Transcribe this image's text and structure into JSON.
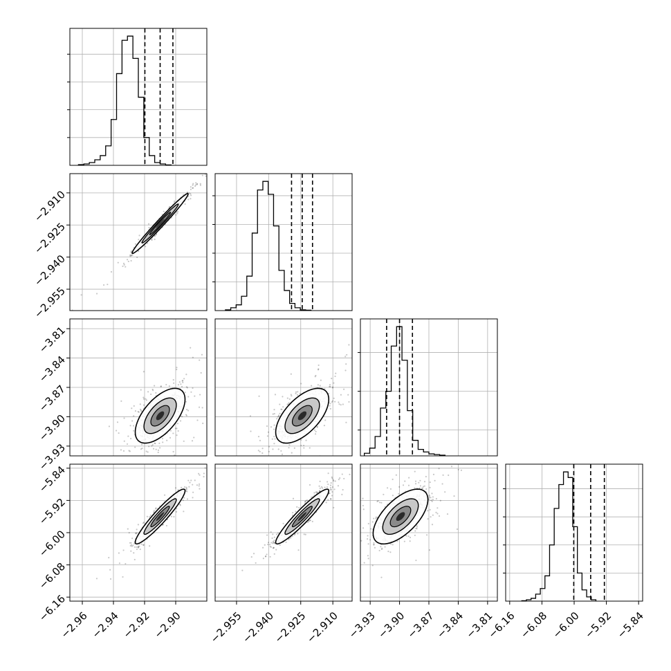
{
  "chart_data": {
    "type": "corner",
    "title": "",
    "grid": true,
    "colors": {
      "line": "#000000",
      "grid": "#b0b0b0",
      "scatter": "#000000",
      "background": "#ffffff"
    },
    "params": [
      {
        "range": [
          -2.968,
          -2.88
        ],
        "ticks": [
          {
            "v": -2.96,
            "label": "−2.96"
          },
          {
            "v": -2.94,
            "label": "−2.94"
          },
          {
            "v": -2.92,
            "label": "−2.92"
          },
          {
            "v": -2.9,
            "label": "−2.90"
          }
        ],
        "quantiles": [
          -2.9198,
          -2.91,
          -2.9018
        ],
        "hist": {
          "edges_start": -2.9625,
          "bin_width": 0.0035,
          "counts": [
            0.5,
            1,
            2,
            4,
            7,
            14,
            33,
            66,
            90,
            93,
            77,
            49,
            20,
            7,
            2,
            1,
            0.3
          ]
        },
        "hist_yticks": [
          20,
          40,
          60,
          80
        ]
      },
      {
        "range": [
          -2.965,
          -2.901
        ],
        "ticks": [
          {
            "v": -2.955,
            "label": "−2.955"
          },
          {
            "v": -2.94,
            "label": "−2.940"
          },
          {
            "v": -2.925,
            "label": "−2.925"
          },
          {
            "v": -2.91,
            "label": "−2.910"
          }
        ],
        "quantiles": [
          -2.9293,
          -2.9243,
          -2.9195
        ],
        "hist": {
          "edges_start": -2.9602,
          "bin_width": 0.0025,
          "counts": [
            0.5,
            2,
            4,
            10,
            24,
            54,
            84,
            90,
            81,
            59,
            28,
            14,
            5,
            2,
            0.5,
            0.3
          ]
        },
        "hist_yticks": [
          20,
          40,
          60,
          80
        ]
      },
      {
        "range": [
          -3.94,
          -3.8
        ],
        "ticks": [
          {
            "v": -3.93,
            "label": "−3.93"
          },
          {
            "v": -3.9,
            "label": "−3.90"
          },
          {
            "v": -3.87,
            "label": "−3.87"
          },
          {
            "v": -3.84,
            "label": "−3.84"
          },
          {
            "v": -3.81,
            "label": "−3.81"
          }
        ],
        "quantiles": [
          -3.9132,
          -3.9,
          -3.8868
        ],
        "hist": {
          "edges_start": -3.936,
          "bin_width": 0.0055,
          "counts": [
            2,
            6,
            15,
            37,
            50,
            85,
            100,
            74,
            35,
            12,
            5,
            3,
            1.5,
            1,
            0.5
          ]
        },
        "hist_yticks": [
          20,
          50,
          80
        ]
      },
      {
        "range": [
          -6.17,
          -5.83
        ],
        "ticks": [
          {
            "v": -6.16,
            "label": "−6.16"
          },
          {
            "v": -6.08,
            "label": "−6.08"
          },
          {
            "v": -6.0,
            "label": "−6.00"
          },
          {
            "v": -5.92,
            "label": "−5.92"
          },
          {
            "v": -5.84,
            "label": "−5.84"
          }
        ],
        "quantiles": [
          -6.001,
          -5.959,
          -5.925
        ],
        "hist": {
          "edges_start": -6.13,
          "bin_width": 0.0115,
          "counts": [
            0.3,
            1,
            2,
            5,
            9,
            18,
            40,
            66,
            83,
            92,
            88,
            53,
            20,
            8,
            3,
            1
          ]
        },
        "hist_yticks": [
          20,
          40,
          60,
          80
        ]
      }
    ],
    "pairs": [
      {
        "row": 1,
        "col": 0,
        "mean": [
          -2.91,
          -2.9243
        ],
        "sd": [
          0.009,
          0.007
        ],
        "corr": 0.985,
        "n": 520
      },
      {
        "row": 2,
        "col": 0,
        "mean": [
          -2.91,
          -3.899
        ],
        "sd": [
          0.008,
          0.014
        ],
        "corr": 0.6,
        "n": 620
      },
      {
        "row": 2,
        "col": 1,
        "mean": [
          -2.9243,
          -3.899
        ],
        "sd": [
          0.0062,
          0.014
        ],
        "corr": 0.6,
        "n": 620
      },
      {
        "row": 3,
        "col": 0,
        "mean": [
          -2.91,
          -5.96
        ],
        "sd": [
          0.008,
          0.034
        ],
        "corr": 0.94,
        "n": 560
      },
      {
        "row": 3,
        "col": 1,
        "mean": [
          -2.9243,
          -5.96
        ],
        "sd": [
          0.0062,
          0.034
        ],
        "corr": 0.94,
        "n": 560
      },
      {
        "row": 3,
        "col": 2,
        "mean": [
          -3.899,
          -5.96
        ],
        "sd": [
          0.014,
          0.034
        ],
        "corr": 0.62,
        "n": 620
      }
    ]
  }
}
